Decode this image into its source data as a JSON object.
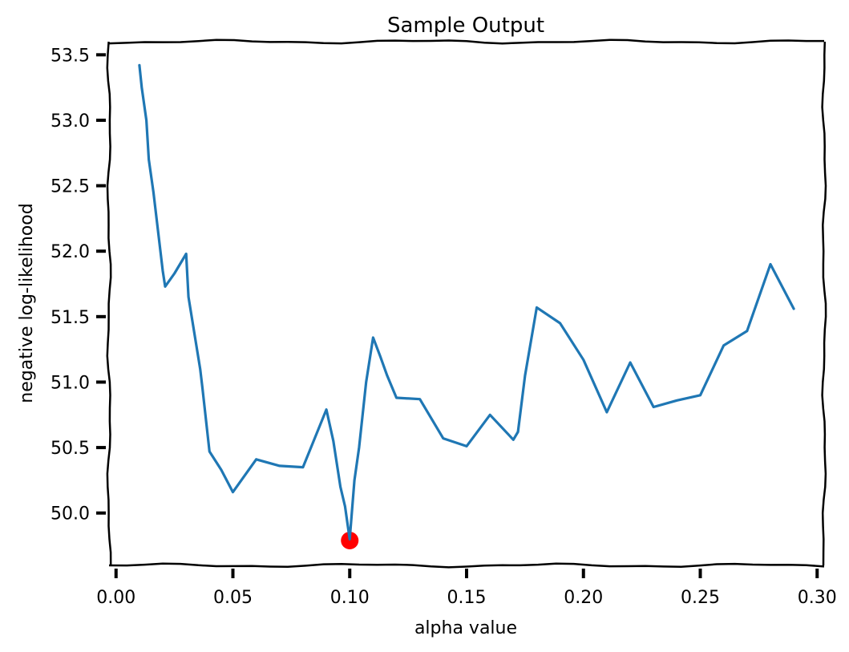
{
  "chart_data": {
    "type": "line",
    "title": "Sample Output",
    "xlabel": "alpha value",
    "ylabel": "negative log-likelihood",
    "xlim": [
      -0.003,
      0.303
    ],
    "ylim": [
      49.6,
      53.6
    ],
    "x_ticks": [
      "0.00",
      "0.05",
      "0.10",
      "0.15",
      "0.20",
      "0.25",
      "0.30"
    ],
    "y_ticks": [
      "50.0",
      "50.5",
      "51.0",
      "51.5",
      "52.0",
      "52.5",
      "53.0",
      "53.5"
    ],
    "grid": false,
    "line_color": "#1f77b4",
    "marker_color": "#ff0000",
    "series": [
      {
        "x": [
          0.01,
          0.011,
          0.013,
          0.014,
          0.016,
          0.02,
          0.021,
          0.025,
          0.03,
          0.031,
          0.036,
          0.037,
          0.04,
          0.045,
          0.05,
          0.06,
          0.07,
          0.08,
          0.09,
          0.093,
          0.096,
          0.098,
          0.1,
          0.102,
          0.104,
          0.107,
          0.11,
          0.113,
          0.116,
          0.12,
          0.13,
          0.14,
          0.15,
          0.16,
          0.17,
          0.172,
          0.175,
          0.18,
          0.19,
          0.2,
          0.21,
          0.22,
          0.23,
          0.24,
          0.25,
          0.26,
          0.27,
          0.28,
          0.29
        ],
        "y": [
          53.42,
          53.25,
          53.0,
          52.7,
          52.45,
          51.85,
          51.73,
          51.83,
          51.98,
          51.65,
          51.1,
          50.95,
          50.47,
          50.33,
          50.16,
          50.41,
          50.36,
          50.35,
          50.79,
          50.55,
          50.2,
          50.05,
          49.8,
          50.25,
          50.5,
          51.0,
          51.34,
          51.2,
          51.05,
          50.88,
          50.87,
          50.57,
          50.51,
          50.75,
          50.56,
          50.62,
          51.05,
          51.57,
          51.45,
          51.17,
          50.77,
          51.15,
          50.81,
          50.86,
          50.9,
          51.28,
          51.39,
          51.9,
          51.56
        ]
      }
    ],
    "highlight_point": {
      "x": 0.1,
      "y": 49.79
    }
  }
}
